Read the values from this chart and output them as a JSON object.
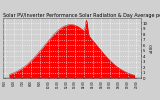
{
  "title": "Solar PV/Inverter Performance Solar Radiation & Day Average per Minute",
  "title_fontsize": 3.5,
  "bg_color": "#d0d0d0",
  "plot_bg_color": "#d0d0d0",
  "fill_color": "#ff0000",
  "line_color": "#cc0000",
  "grid_color": "#ffffff",
  "ylim": [
    0,
    1100
  ],
  "yticks": [
    0,
    100,
    200,
    300,
    400,
    500,
    600,
    700,
    800,
    900,
    1000
  ],
  "ytick_labels": [
    "0",
    "1",
    "2",
    "3",
    "4",
    "5",
    "6",
    "7",
    "8",
    "9",
    "10"
  ],
  "ylabel_right": "x100",
  "xtick_positions": [
    5,
    6,
    7,
    8,
    9,
    10,
    11,
    12,
    13,
    14,
    15,
    16,
    17,
    18,
    19,
    20
  ],
  "xtick_labels": [
    "5:00",
    "6:00",
    "7:00",
    "8:00",
    "9:00",
    "10:00",
    "11:00",
    "12:00",
    "13:00",
    "14:00",
    "15:00",
    "16:00",
    "17:00",
    "18:00",
    "19:00",
    "20:00"
  ],
  "xlim": [
    4.8,
    20.5
  ],
  "peak_x": 12.5,
  "start_x": 5.5,
  "end_x": 19.8,
  "peak_value": 980,
  "sigma": 3.0,
  "spike_x": 14.3,
  "spike_value": 1060,
  "spike_sigma": 0.12
}
